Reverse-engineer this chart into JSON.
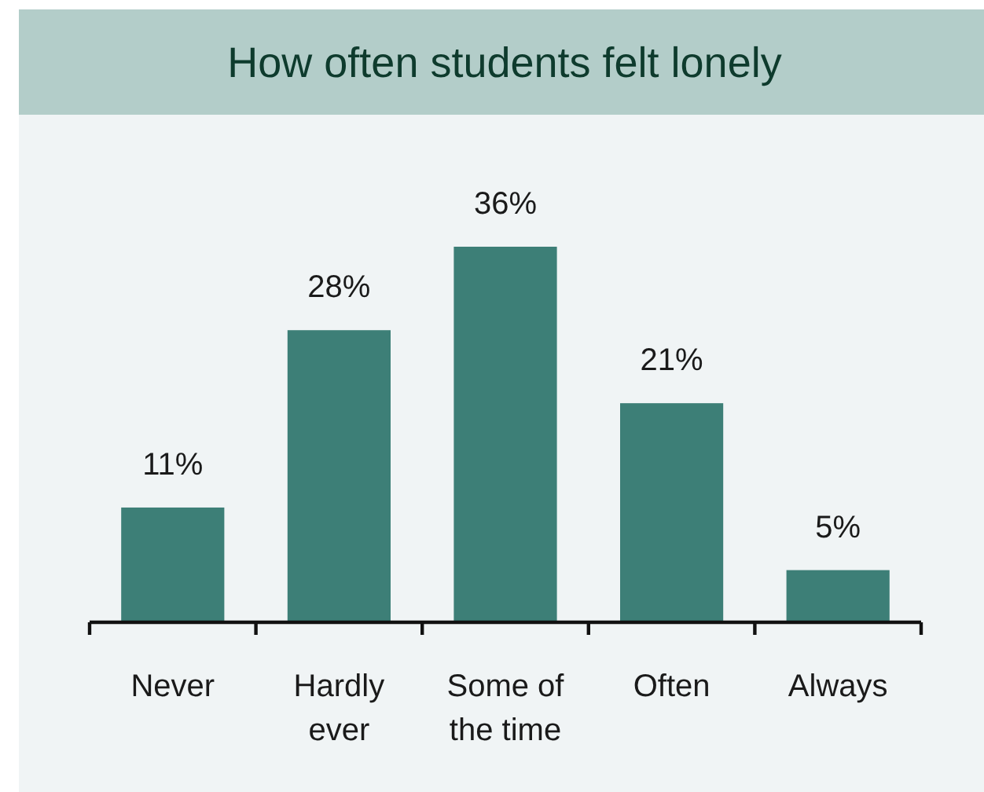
{
  "chart_data": {
    "type": "bar",
    "title": "How often students felt lonely",
    "categories": [
      "Never",
      "Hardly ever",
      "Some of the time",
      "Often",
      "Always"
    ],
    "values": [
      11,
      28,
      36,
      21,
      5
    ],
    "value_labels": [
      "11%",
      "28%",
      "36%",
      "21%",
      "5%"
    ],
    "color": "#3d7f77"
  }
}
